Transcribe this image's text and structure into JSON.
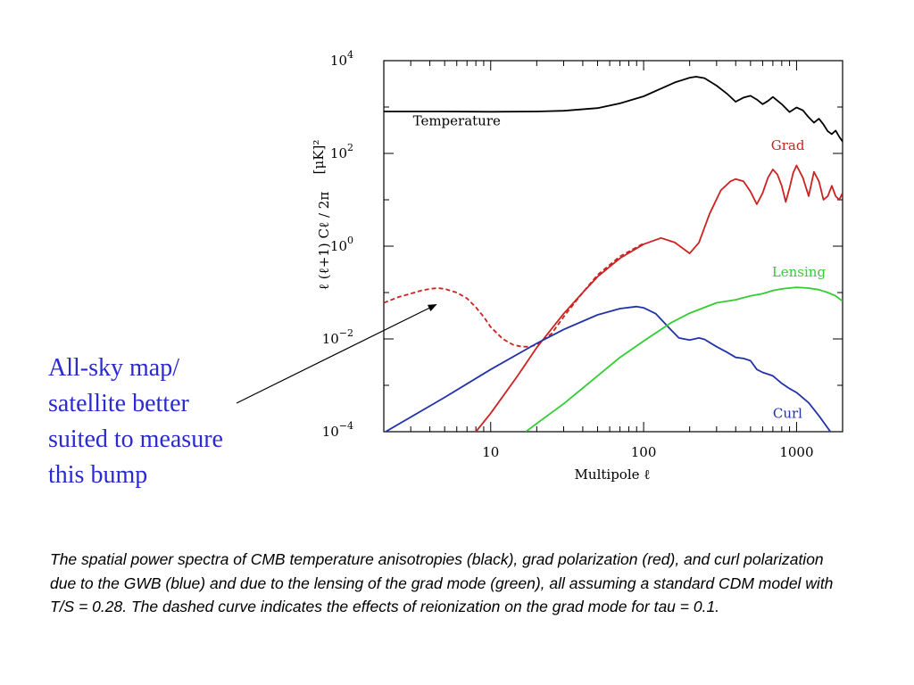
{
  "annotation": {
    "lines": [
      "All-sky map/",
      "satellite better",
      "suited to measure",
      "this bump"
    ],
    "color": "#2a2ad0"
  },
  "caption": "The spatial power spectra of CMB temperature anisotropies (black), grad polarization (red), and curl polarization due to the GWB (blue) and due to the lensing of the grad mode (green), all assuming a standard CDM model with T/S = 0.28. The dashed curve indicates the effects of reionization on the grad mode for tau = 0.1.",
  "chart_data": {
    "type": "line",
    "xscale": "log",
    "yscale": "log",
    "xlabel": "Multipole ℓ",
    "ylabel": "ℓ (ℓ+1) Cℓ / 2π",
    "ylabel_unit": "[μK]²",
    "xlim": [
      2,
      2000
    ],
    "ylim": [
      0.0001,
      10000
    ],
    "x_ticks": [
      {
        "value": 10,
        "label": "10"
      },
      {
        "value": 100,
        "label": "100"
      },
      {
        "value": 1000,
        "label": "1000"
      }
    ],
    "y_ticks": [
      {
        "value": 0.0001,
        "base": "10",
        "exp": "−4"
      },
      {
        "value": 0.01,
        "base": "10",
        "exp": "−2"
      },
      {
        "value": 1,
        "base": "10",
        "exp": "0"
      },
      {
        "value": 100,
        "base": "10",
        "exp": "2"
      },
      {
        "value": 10000,
        "base": "10",
        "exp": "4"
      }
    ],
    "grid": false,
    "series": [
      {
        "name": "Temperature",
        "color": "#000000",
        "dash": false,
        "label_at": [
          3.1,
          400
        ],
        "x": [
          2,
          3,
          5,
          10,
          20,
          30,
          50,
          70,
          100,
          130,
          160,
          200,
          220,
          250,
          300,
          350,
          400,
          450,
          500,
          550,
          600,
          650,
          700,
          800,
          900,
          1000,
          1100,
          1200,
          1300,
          1400,
          1500,
          1600,
          1700,
          1800,
          1900,
          2000
        ],
        "y": [
          800,
          800,
          800,
          790,
          800,
          830,
          950,
          1200,
          1700,
          2500,
          3400,
          4300,
          4500,
          4200,
          2900,
          1950,
          1300,
          1600,
          1750,
          1450,
          1150,
          1350,
          1650,
          1150,
          780,
          980,
          850,
          600,
          460,
          560,
          420,
          300,
          260,
          310,
          230,
          180
        ]
      },
      {
        "name": "Grad",
        "color": "#cc2222",
        "dash": false,
        "label_at": [
          680,
          120
        ],
        "x": [
          7,
          8,
          10,
          15,
          20,
          30,
          40,
          50,
          70,
          100,
          130,
          160,
          200,
          230,
          270,
          320,
          370,
          400,
          450,
          500,
          550,
          600,
          650,
          700,
          750,
          800,
          850,
          900,
          950,
          1000,
          1100,
          1200,
          1300,
          1400,
          1500,
          1600,
          1700,
          1800,
          1900,
          2000
        ],
        "y": [
          5e-05,
          0.0001,
          0.00025,
          0.0016,
          0.0065,
          0.035,
          0.1,
          0.22,
          0.55,
          1.1,
          1.5,
          1.2,
          0.7,
          1.2,
          5,
          16,
          25,
          28,
          25,
          15,
          8,
          14,
          30,
          45,
          35,
          20,
          9,
          18,
          38,
          55,
          30,
          12,
          40,
          25,
          10,
          12,
          20,
          12,
          10,
          14
        ]
      },
      {
        "name": "Grad (reionization, tau = 0.1)",
        "color": "#cc2222",
        "dash": true,
        "x": [
          2,
          2.5,
          3,
          3.5,
          4,
          4.5,
          5,
          6,
          7,
          8,
          9,
          10,
          12,
          14,
          16,
          18,
          20,
          25,
          30,
          40,
          50,
          70,
          100
        ],
        "y": [
          0.06,
          0.08,
          0.095,
          0.11,
          0.12,
          0.125,
          0.12,
          0.1,
          0.075,
          0.048,
          0.03,
          0.018,
          0.01,
          0.0075,
          0.0068,
          0.0068,
          0.0075,
          0.013,
          0.03,
          0.1,
          0.24,
          0.6,
          1.15
        ]
      },
      {
        "name": "Curl",
        "color": "#2233aa",
        "dash": false,
        "label_at": [
          700,
          0.0002
        ],
        "x": [
          2,
          5,
          10,
          20,
          30,
          50,
          70,
          90,
          100,
          120,
          150,
          170,
          200,
          230,
          250,
          300,
          350,
          400,
          450,
          500,
          550,
          600,
          700,
          800,
          900,
          1000,
          1200,
          1400,
          1600,
          1800
        ],
        "y": [
          9.5e-05,
          0.00055,
          0.0022,
          0.008,
          0.016,
          0.033,
          0.045,
          0.05,
          0.047,
          0.035,
          0.016,
          0.0105,
          0.0095,
          0.0105,
          0.0098,
          0.0068,
          0.0052,
          0.004,
          0.0038,
          0.0034,
          0.0022,
          0.0019,
          0.0016,
          0.0011,
          0.00085,
          0.0007,
          0.00042,
          0.00022,
          0.00012,
          7e-05
        ]
      },
      {
        "name": "Lensing",
        "color": "#33cc33",
        "dash": false,
        "label_at": [
          690,
          0.22
        ],
        "x": [
          17,
          20,
          30,
          50,
          70,
          100,
          150,
          200,
          300,
          400,
          500,
          600,
          700,
          800,
          1000,
          1200,
          1400,
          1600,
          1800,
          2000
        ],
        "y": [
          0.0001,
          0.00015,
          0.0004,
          0.0016,
          0.004,
          0.009,
          0.022,
          0.036,
          0.06,
          0.07,
          0.085,
          0.095,
          0.11,
          0.12,
          0.13,
          0.125,
          0.115,
          0.1,
          0.085,
          0.065
        ]
      }
    ],
    "arrow": {
      "from_caption": true,
      "to": [
        4.4,
        0.055
      ]
    }
  }
}
